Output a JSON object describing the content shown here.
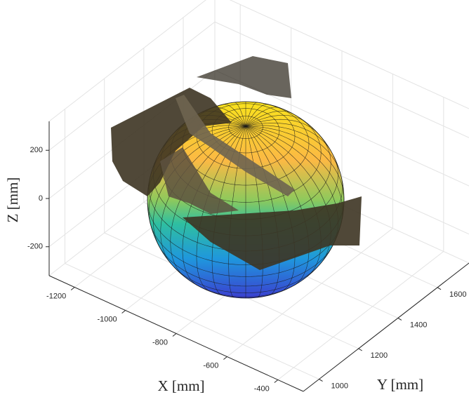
{
  "chart_data": {
    "type": "surface3d",
    "xlabel": "X [mm]",
    "ylabel": "Y [mm]",
    "zlabel": "Z [mm]",
    "xlim": [
      -1300,
      -300
    ],
    "ylim": [
      920,
      1760
    ],
    "zlim": [
      -320,
      320
    ],
    "xticks": [
      -1200,
      -1000,
      -800,
      -600,
      -400
    ],
    "yticks": [
      1000,
      1200,
      1400,
      1600
    ],
    "zticks": [
      -200,
      0,
      200
    ],
    "grid": true
  }
}
